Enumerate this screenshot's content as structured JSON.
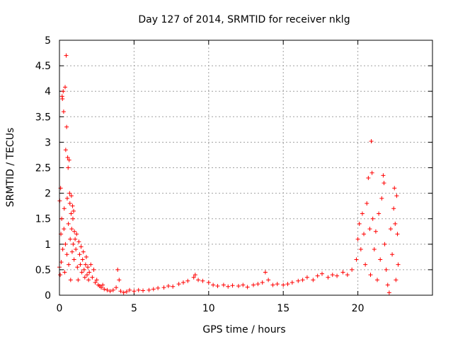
{
  "chart_data": {
    "type": "scatter",
    "title": "Day 127 of 2014, SRMTID for receiver nklg",
    "xlabel": "GPS time / hours",
    "ylabel": "SRMTID / TECUs",
    "xlim": [
      0,
      25
    ],
    "ylim": [
      0,
      5
    ],
    "x_ticks": [
      0,
      5,
      10,
      15,
      20
    ],
    "x_tick_labels": [
      "0",
      "5",
      "10",
      "15",
      "20"
    ],
    "y_ticks": [
      0,
      0.5,
      1,
      1.5,
      2,
      2.5,
      3,
      3.5,
      4,
      4.5,
      5
    ],
    "y_tick_labels": [
      "0",
      "0.5",
      "1",
      "1.5",
      "2",
      "2.5",
      "3",
      "3.5",
      "4",
      "4.5",
      "5"
    ],
    "grid": true,
    "marker": "+",
    "color": "#ff0000",
    "series": [
      {
        "name": "nklg",
        "points": [
          [
            0.0,
            0.55
          ],
          [
            0.02,
            1.85
          ],
          [
            0.05,
            0.4
          ],
          [
            0.08,
            2.1
          ],
          [
            0.1,
            1.2
          ],
          [
            0.12,
            0.65
          ],
          [
            0.15,
            1.5
          ],
          [
            0.18,
            3.9
          ],
          [
            0.2,
            3.85
          ],
          [
            0.22,
            0.9
          ],
          [
            0.25,
            4.0
          ],
          [
            0.28,
            3.6
          ],
          [
            0.3,
            1.3
          ],
          [
            0.32,
            1.7
          ],
          [
            0.35,
            0.45
          ],
          [
            0.38,
            4.08
          ],
          [
            0.4,
            1.0
          ],
          [
            0.42,
            2.85
          ],
          [
            0.45,
            4.7
          ],
          [
            0.48,
            3.3
          ],
          [
            0.5,
            0.8
          ],
          [
            0.52,
            1.9
          ],
          [
            0.55,
            2.7
          ],
          [
            0.58,
            2.5
          ],
          [
            0.6,
            1.4
          ],
          [
            0.62,
            0.6
          ],
          [
            0.65,
            2.65
          ],
          [
            0.68,
            2.0
          ],
          [
            0.7,
            1.8
          ],
          [
            0.72,
            1.1
          ],
          [
            0.75,
            0.3
          ],
          [
            0.78,
            1.6
          ],
          [
            0.8,
            1.95
          ],
          [
            0.82,
            1.3
          ],
          [
            0.85,
            0.85
          ],
          [
            0.88,
            1.75
          ],
          [
            0.9,
            1.5
          ],
          [
            0.92,
            1.0
          ],
          [
            0.95,
            1.65
          ],
          [
            0.98,
            0.7
          ],
          [
            1.0,
            1.25
          ],
          [
            1.05,
            1.1
          ],
          [
            1.1,
            0.9
          ],
          [
            1.15,
            1.2
          ],
          [
            1.2,
            0.55
          ],
          [
            1.25,
            0.3
          ],
          [
            1.3,
            1.05
          ],
          [
            1.35,
            0.8
          ],
          [
            1.4,
            0.6
          ],
          [
            1.45,
            0.95
          ],
          [
            1.5,
            0.45
          ],
          [
            1.55,
            0.7
          ],
          [
            1.6,
            0.85
          ],
          [
            1.65,
            0.5
          ],
          [
            1.7,
            0.35
          ],
          [
            1.75,
            0.6
          ],
          [
            1.8,
            0.75
          ],
          [
            1.85,
            0.4
          ],
          [
            1.9,
            0.55
          ],
          [
            1.95,
            0.3
          ],
          [
            2.0,
            0.45
          ],
          [
            2.1,
            0.6
          ],
          [
            2.2,
            0.35
          ],
          [
            2.3,
            0.5
          ],
          [
            2.4,
            0.25
          ],
          [
            2.5,
            0.3
          ],
          [
            2.6,
            0.2
          ],
          [
            2.7,
            0.18
          ],
          [
            2.8,
            0.15
          ],
          [
            2.9,
            0.2
          ],
          [
            3.0,
            0.12
          ],
          [
            3.2,
            0.1
          ],
          [
            3.4,
            0.08
          ],
          [
            3.6,
            0.1
          ],
          [
            3.8,
            0.15
          ],
          [
            3.9,
            0.5
          ],
          [
            4.0,
            0.3
          ],
          [
            4.1,
            0.08
          ],
          [
            4.3,
            0.05
          ],
          [
            4.5,
            0.07
          ],
          [
            4.7,
            0.1
          ],
          [
            5.0,
            0.08
          ],
          [
            5.3,
            0.1
          ],
          [
            5.6,
            0.09
          ],
          [
            6.0,
            0.1
          ],
          [
            6.3,
            0.12
          ],
          [
            6.6,
            0.14
          ],
          [
            7.0,
            0.15
          ],
          [
            7.3,
            0.18
          ],
          [
            7.6,
            0.17
          ],
          [
            8.0,
            0.22
          ],
          [
            8.3,
            0.25
          ],
          [
            8.6,
            0.28
          ],
          [
            9.0,
            0.35
          ],
          [
            9.1,
            0.4
          ],
          [
            9.3,
            0.3
          ],
          [
            9.6,
            0.28
          ],
          [
            10.0,
            0.25
          ],
          [
            10.3,
            0.2
          ],
          [
            10.6,
            0.18
          ],
          [
            11.0,
            0.2
          ],
          [
            11.3,
            0.17
          ],
          [
            11.6,
            0.19
          ],
          [
            12.0,
            0.18
          ],
          [
            12.3,
            0.2
          ],
          [
            12.6,
            0.16
          ],
          [
            13.0,
            0.2
          ],
          [
            13.3,
            0.22
          ],
          [
            13.6,
            0.25
          ],
          [
            13.8,
            0.45
          ],
          [
            14.0,
            0.3
          ],
          [
            14.3,
            0.2
          ],
          [
            14.6,
            0.22
          ],
          [
            15.0,
            0.2
          ],
          [
            15.3,
            0.22
          ],
          [
            15.6,
            0.25
          ],
          [
            16.0,
            0.28
          ],
          [
            16.3,
            0.3
          ],
          [
            16.6,
            0.35
          ],
          [
            17.0,
            0.3
          ],
          [
            17.3,
            0.38
          ],
          [
            17.6,
            0.42
          ],
          [
            18.0,
            0.35
          ],
          [
            18.3,
            0.4
          ],
          [
            18.6,
            0.38
          ],
          [
            19.0,
            0.45
          ],
          [
            19.3,
            0.4
          ],
          [
            19.6,
            0.5
          ],
          [
            19.9,
            0.7
          ],
          [
            20.0,
            1.1
          ],
          [
            20.1,
            1.4
          ],
          [
            20.2,
            0.9
          ],
          [
            20.3,
            1.6
          ],
          [
            20.4,
            1.2
          ],
          [
            20.5,
            0.6
          ],
          [
            20.6,
            1.8
          ],
          [
            20.7,
            2.3
          ],
          [
            20.8,
            1.3
          ],
          [
            20.85,
            0.4
          ],
          [
            20.9,
            3.02
          ],
          [
            20.95,
            2.4
          ],
          [
            21.0,
            1.5
          ],
          [
            21.1,
            0.9
          ],
          [
            21.2,
            1.25
          ],
          [
            21.3,
            0.3
          ],
          [
            21.4,
            1.6
          ],
          [
            21.5,
            0.7
          ],
          [
            21.6,
            1.9
          ],
          [
            21.7,
            2.35
          ],
          [
            21.75,
            2.2
          ],
          [
            21.8,
            1.0
          ],
          [
            21.9,
            0.5
          ],
          [
            22.0,
            0.2
          ],
          [
            22.1,
            0.05
          ],
          [
            22.2,
            1.3
          ],
          [
            22.3,
            0.8
          ],
          [
            22.4,
            1.7
          ],
          [
            22.45,
            2.1
          ],
          [
            22.5,
            1.4
          ],
          [
            22.55,
            0.3
          ],
          [
            22.6,
            1.95
          ],
          [
            22.65,
            1.2
          ],
          [
            22.7,
            0.6
          ]
        ]
      }
    ]
  }
}
